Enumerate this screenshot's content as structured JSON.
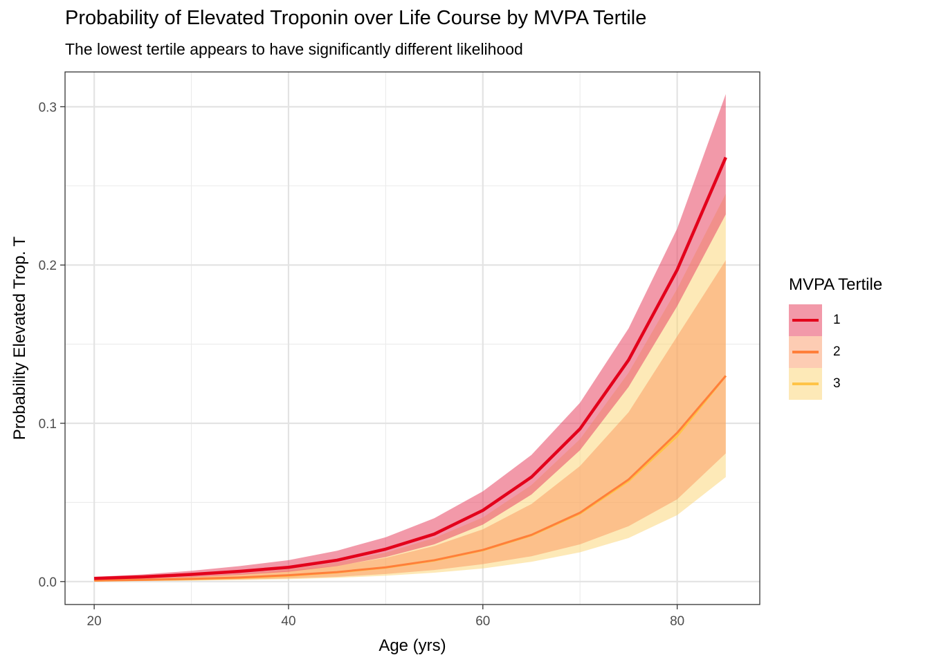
{
  "chart_data": {
    "type": "line",
    "title": "Probability of Elevated Troponin over Life Course by MVPA Tertile",
    "subtitle": "The lowest tertile appears to have significantly different likelihood",
    "xlabel": "Age (yrs)",
    "ylabel": "Probability Elevated Trop. T",
    "xlim": [
      17,
      88.5
    ],
    "ylim": [
      -0.0145,
      0.322
    ],
    "x_ticks": [
      20,
      40,
      60,
      80
    ],
    "x_tick_labels": [
      "20",
      "40",
      "60",
      "80"
    ],
    "y_ticks": [
      0.0,
      0.1,
      0.2,
      0.3
    ],
    "y_tick_labels": [
      "0.0",
      "0.1",
      "0.2",
      "0.3"
    ],
    "grid": true,
    "legend_position": "right",
    "legend_title": "MVPA Tertile",
    "x": [
      20,
      25,
      30,
      35,
      40,
      45,
      50,
      55,
      60,
      65,
      70,
      75,
      80,
      85
    ],
    "series": [
      {
        "name": "1",
        "line_color": "#e3001b",
        "band_color": "#e8506a",
        "band_opacity": 0.58,
        "values": [
          0.002,
          0.003,
          0.0045,
          0.0065,
          0.009,
          0.0135,
          0.0205,
          0.03,
          0.045,
          0.066,
          0.0965,
          0.14,
          0.197,
          0.268
        ],
        "lower": [
          0.001,
          0.0017,
          0.0028,
          0.0043,
          0.0062,
          0.0098,
          0.0155,
          0.0235,
          0.036,
          0.055,
          0.083,
          0.123,
          0.174,
          0.232
        ],
        "upper": [
          0.003,
          0.0045,
          0.0068,
          0.0098,
          0.0135,
          0.0195,
          0.028,
          0.04,
          0.057,
          0.08,
          0.113,
          0.16,
          0.223,
          0.308
        ]
      },
      {
        "name": "2",
        "line_color": "#ff7f3a",
        "band_color": "#fb8f57",
        "band_opacity": 0.45,
        "values": [
          0.0007,
          0.0011,
          0.0017,
          0.0026,
          0.004,
          0.006,
          0.009,
          0.0135,
          0.02,
          0.0295,
          0.0435,
          0.0645,
          0.094,
          0.13
        ],
        "lower": [
          0.0003,
          0.0005,
          0.0008,
          0.0013,
          0.002,
          0.003,
          0.0048,
          0.0073,
          0.011,
          0.016,
          0.0235,
          0.035,
          0.052,
          0.081
        ],
        "upper": [
          0.0013,
          0.002,
          0.003,
          0.0045,
          0.0068,
          0.01,
          0.015,
          0.0225,
          0.033,
          0.049,
          0.073,
          0.107,
          0.155,
          0.203
        ]
      },
      {
        "name": "3",
        "line_color": "#ffc447",
        "band_color": "#fcd470",
        "band_opacity": 0.5,
        "values": [
          0.0006,
          0.001,
          0.0015,
          0.0024,
          0.0037,
          0.0058,
          0.0088,
          0.0133,
          0.0198,
          0.0292,
          0.043,
          0.0635,
          0.092,
          0.13
        ],
        "lower": [
          0.0002,
          0.0004,
          0.0006,
          0.001,
          0.0015,
          0.0024,
          0.0037,
          0.0056,
          0.0083,
          0.0125,
          0.0185,
          0.0275,
          0.042,
          0.066
        ],
        "upper": [
          0.0013,
          0.0021,
          0.0033,
          0.0052,
          0.0079,
          0.0121,
          0.0183,
          0.0275,
          0.0405,
          0.061,
          0.09,
          0.132,
          0.185,
          0.245
        ]
      }
    ]
  }
}
